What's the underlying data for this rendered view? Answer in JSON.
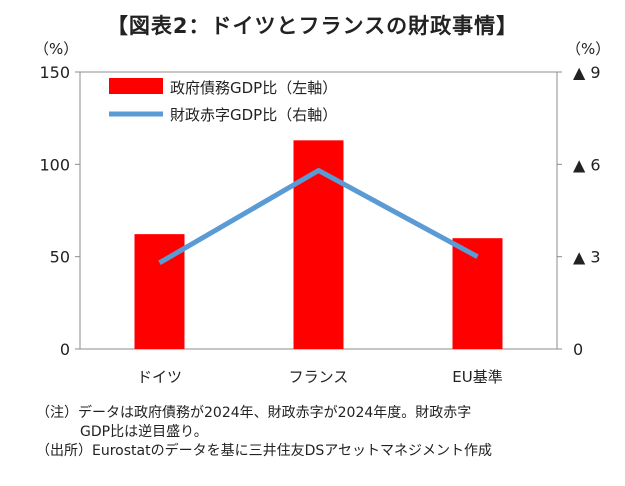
{
  "chart_data": {
    "type": "bar",
    "title": "【図表2：ドイツとフランスの財政事情】",
    "categories": [
      "ドイツ",
      "フランス",
      "EU基準"
    ],
    "series": [
      {
        "name": "政府債務GDP比（左軸）",
        "type": "bar",
        "axis": "left",
        "color": "#ff0000",
        "values": [
          62.2,
          113.0,
          60.0
        ]
      },
      {
        "name": "財政赤字GDP比（右軸）",
        "type": "line",
        "axis": "right",
        "color": "#5b9bd5",
        "values": [
          2.8,
          5.8,
          3.0
        ]
      }
    ],
    "left_axis": {
      "unit": "（%）",
      "ylim": [
        0,
        150
      ],
      "ticks": [
        "0",
        "50",
        "100",
        "150"
      ]
    },
    "right_axis": {
      "unit": "（%）",
      "ylim": [
        0,
        9
      ],
      "inverted_sign": true,
      "ticks": [
        "0",
        "▲ 3",
        "▲ 6",
        "▲ 9"
      ]
    },
    "grid": false,
    "legend": "top-left"
  },
  "notes": {
    "line1": "（注）データは政府債務が2024年、財政赤字が2024年度。財政赤字",
    "line2": "GDP比は逆目盛り。",
    "line3": "（出所）Eurostatのデータを基に三井住友DSアセットマネジメント作成"
  }
}
